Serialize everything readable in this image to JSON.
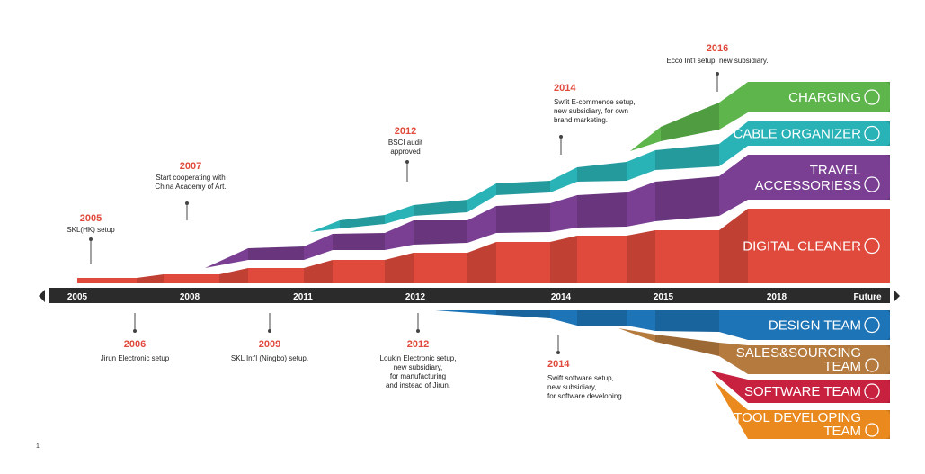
{
  "colors": {
    "digital": "#e04a3c",
    "travel": "#7a3f93",
    "cable": "#2ab3b7",
    "charging": "#5db54b",
    "design": "#1d74b7",
    "sales": "#b57a3e",
    "software": "#c8203f",
    "tool": "#ea8a1e",
    "axis": "#2b2b2b",
    "year": "#e04a3c"
  },
  "axis": {
    "ticks": [
      "2005",
      "2008",
      "2011",
      "2012",
      "2014",
      "2015",
      "2018",
      "Future"
    ]
  },
  "categories": {
    "products": [
      {
        "label": "CHARGING",
        "icon": "plug-icon"
      },
      {
        "label": "CABLE ORGANIZER",
        "icon": "cable-icon"
      },
      {
        "label": "TRAVEL ACCESSORIESS",
        "line1": "TRAVEL",
        "line2": "ACCESSORIESS",
        "icon": "suitcase-icon"
      },
      {
        "label": "DIGITAL CLEANER",
        "icon": "house-icon"
      }
    ],
    "teams": [
      {
        "label": "DESIGN TEAM",
        "icon": "pencil-icon"
      },
      {
        "label": "SALES&SOURCING TEAM",
        "line1": "SALES&SOURCING",
        "line2": "TEAM",
        "icon": "cart-icon"
      },
      {
        "label": "SOFTWARE TEAM",
        "icon": "monitor-icon"
      },
      {
        "label": "TOOL DEVELOPING TEAM",
        "line1": "TOOL DEVELOPING",
        "line2": "TEAM",
        "icon": "gear-icon"
      }
    ]
  },
  "milestones_above": [
    {
      "year": "2005",
      "lines": [
        "SKL(HK) setup"
      ]
    },
    {
      "year": "2007",
      "lines": [
        "Start cooperating with",
        "China Academy of Art."
      ]
    },
    {
      "year": "2012",
      "lines": [
        "BSCI audit",
        "approved"
      ]
    },
    {
      "year": "2014",
      "lines": [
        "Swfit E-commence setup,",
        "new subsidiary, for own",
        "brand marketing."
      ]
    },
    {
      "year": "2016",
      "lines": [
        "Ecco Int'l setup, new subsidiary."
      ]
    }
  ],
  "milestones_below": [
    {
      "year": "2006",
      "lines": [
        "Jirun Electronic setup"
      ]
    },
    {
      "year": "2009",
      "lines": [
        "SKL Int'l (Ningbo) setup."
      ]
    },
    {
      "year": "2012",
      "lines": [
        "Loukin Electronic setup,",
        "new subsidiary,",
        "for manufacturing",
        "and instead of Jirun."
      ]
    },
    {
      "year": "2014",
      "lines": [
        "Swift software setup,",
        "new subsidiary,",
        "for software developing."
      ]
    }
  ],
  "footnote": "1"
}
